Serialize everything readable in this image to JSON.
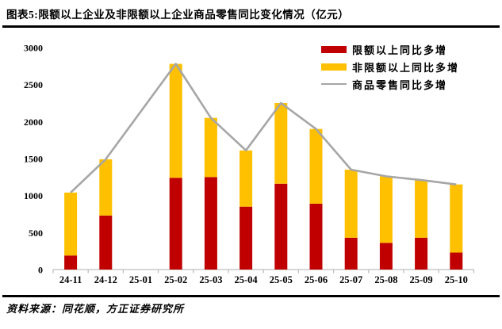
{
  "header": {
    "title": "图表5:限额以上企业及非限额以上企业商品零售同比变化情况（亿元）"
  },
  "legend": {
    "items": [
      {
        "label": "限额以上同比多增",
        "swatch": "bar",
        "color": "#C00000"
      },
      {
        "label": "非限额以上同比多增",
        "swatch": "bar",
        "color": "#FFC000"
      },
      {
        "label": "商品零售同比多增",
        "swatch": "line",
        "color": "#A6A6A6"
      }
    ]
  },
  "colors": {
    "limit_bar": "#C00000",
    "nonlimit_bar": "#FFC000",
    "line": "#A6A6A6",
    "axis": "#BFBFBF",
    "text": "#000000",
    "rule": "#000000"
  },
  "chart_data": {
    "type": "bar",
    "subtype": "stacked-bars-with-line",
    "title": "图表5:限额以上企业及非限额以上企业商品零售同比变化情况（亿元）",
    "categories": [
      "24-11",
      "24-12",
      "25-01",
      "25-02",
      "25-03",
      "25-04",
      "25-05",
      "25-06",
      "25-07",
      "25-08",
      "25-09",
      "25-10"
    ],
    "series": [
      {
        "name": "限额以上同比多增",
        "type": "bar-stack",
        "color": "#C00000",
        "values": [
          190,
          730,
          null,
          1240,
          1250,
          850,
          1160,
          890,
          430,
          360,
          430,
          230
        ]
      },
      {
        "name": "非限额以上同比多增",
        "type": "bar-stack",
        "color": "#FFC000",
        "values": [
          850,
          760,
          null,
          1540,
          800,
          760,
          1090,
          1010,
          920,
          900,
          780,
          920
        ]
      },
      {
        "name": "商品零售同比多增",
        "type": "line",
        "color": "#A6A6A6",
        "values": [
          1040,
          1490,
          null,
          2780,
          2050,
          1610,
          2250,
          1900,
          1350,
          1260,
          1210,
          1150
        ]
      }
    ],
    "xlabel": "",
    "ylabel": "",
    "ylim": [
      0,
      3000
    ],
    "yticks": [
      0,
      500,
      1000,
      1500,
      2000,
      2500,
      3000
    ],
    "grid": false,
    "legend_position": "top-right",
    "note": "25-01 has no data (gap); line connects 24-12 directly to 25-02"
  },
  "footer": {
    "source": "资料来源：同花顺，方正证券研究所"
  }
}
